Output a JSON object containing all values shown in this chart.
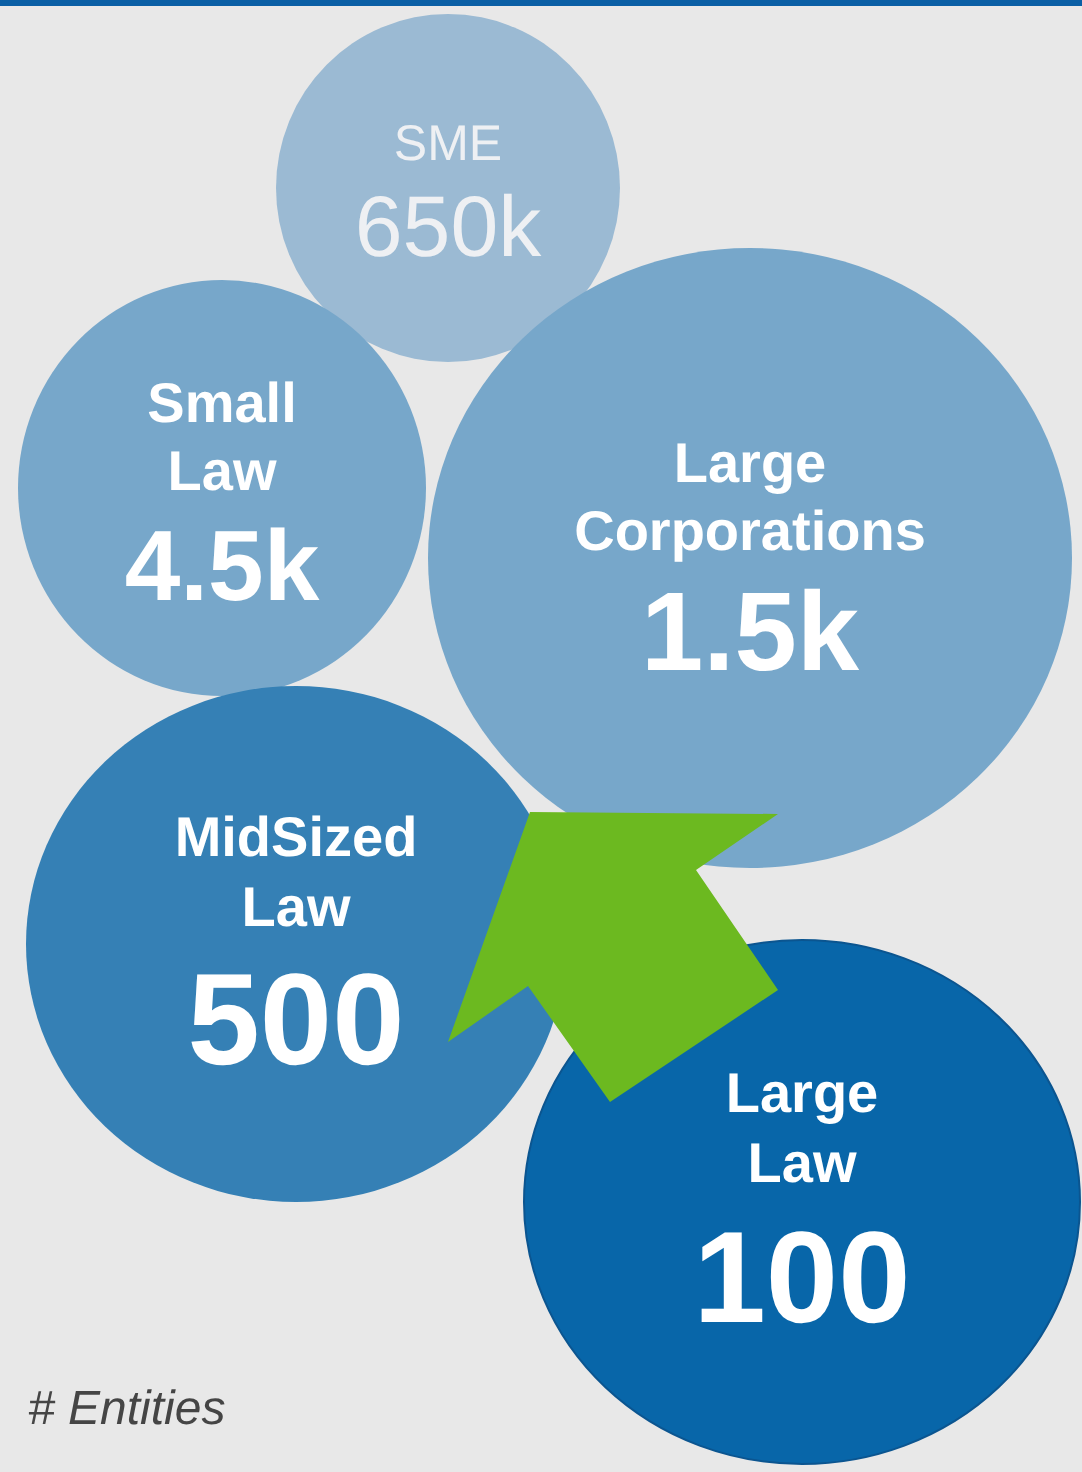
{
  "chart_data": {
    "type": "other",
    "categories": [
      "SME",
      "Small Law",
      "Large Corporations",
      "MidSized Law",
      "Large Law"
    ],
    "values": [
      650000,
      4500,
      1500,
      500,
      100
    ],
    "value_labels": [
      "650k",
      "4.5k",
      "1.5k",
      "500",
      "100"
    ],
    "colors": [
      "#9bbad3",
      "#77a7ca",
      "#77a7ca",
      "#3580b5",
      "#0866a9"
    ],
    "annotations": [
      "# Entities"
    ]
  }
}
